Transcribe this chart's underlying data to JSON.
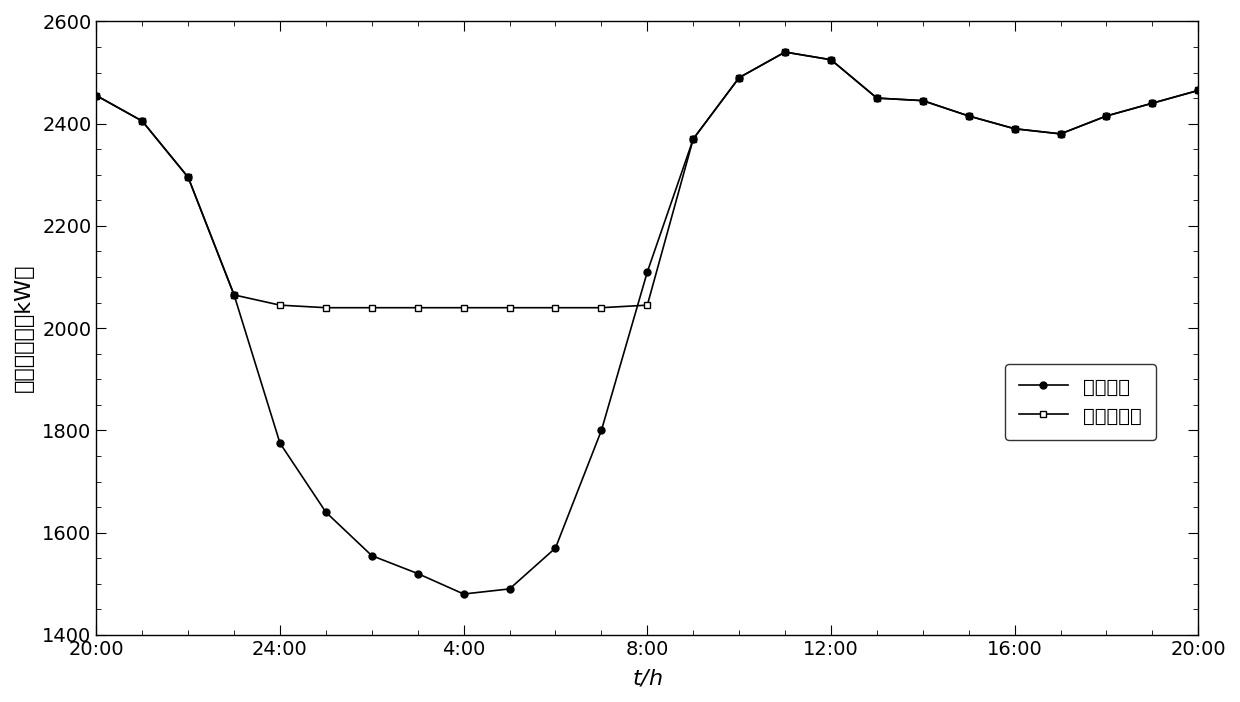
{
  "title": "",
  "xlabel": "$t$/h",
  "ylabel": "电网总负荷（kW）",
  "ylim": [
    1400,
    2600
  ],
  "yticks": [
    1400,
    1600,
    1800,
    2000,
    2200,
    2400,
    2600
  ],
  "xtick_labels": [
    "20:00",
    "24:00",
    "4:00",
    "8:00",
    "12:00",
    "16:00",
    "20:00"
  ],
  "xtick_positions": [
    0,
    4,
    8,
    12,
    16,
    20,
    24
  ],
  "line1_name": "基础负荷",
  "line1_x": [
    0,
    1,
    2,
    3,
    4,
    5,
    6,
    7,
    8,
    9,
    10,
    11,
    12,
    13,
    14,
    15,
    16,
    17,
    18,
    19,
    20,
    21,
    22,
    23,
    24
  ],
  "line1_y": [
    2455,
    2405,
    2295,
    2065,
    1775,
    1640,
    1555,
    1520,
    1480,
    1490,
    1570,
    1800,
    2110,
    2370,
    2490,
    2540,
    2525,
    2450,
    2445,
    2415,
    2390,
    2380,
    2415,
    2440,
    2465
  ],
  "line2_name": "收敛后的値",
  "line2_x": [
    0,
    1,
    2,
    3,
    4,
    5,
    6,
    7,
    8,
    9,
    10,
    11,
    12,
    13,
    14,
    15,
    16,
    17,
    18,
    19,
    20,
    21,
    22,
    23,
    24
  ],
  "line2_y": [
    2455,
    2405,
    2295,
    2065,
    2045,
    2040,
    2040,
    2040,
    2040,
    2040,
    2040,
    2040,
    2045,
    2370,
    2490,
    2540,
    2525,
    2450,
    2445,
    2415,
    2390,
    2380,
    2415,
    2440,
    2465
  ],
  "line_color": "black",
  "marker1": "o",
  "marker2": "s",
  "markersize": 5,
  "linewidth": 1.2,
  "background_color": "white",
  "tick_fontsize": 14,
  "label_fontsize": 16,
  "legend_fontsize": 14
}
